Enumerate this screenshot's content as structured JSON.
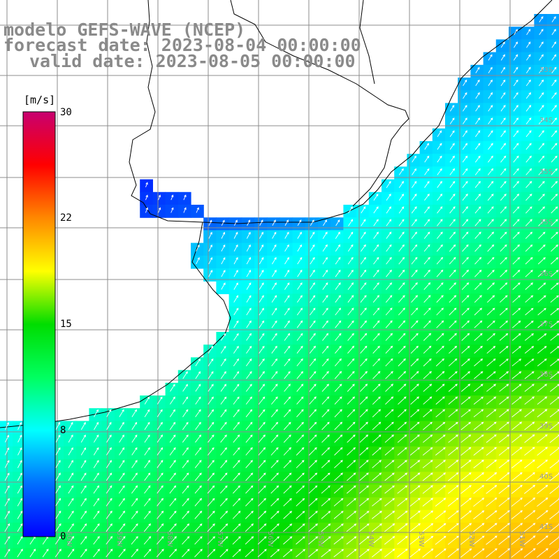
{
  "map": {
    "title": "modelo GEFS-WAVE (NCEP)",
    "forecast_date": "forecast date: 2023-08-04 00:00:00",
    "valid_date": "valid date: 2023-08-05 00:00:00",
    "land_color": "#ffffff",
    "grid_color": "#8c8c8c",
    "coast_color": "#000000",
    "arrow_color": "#ffffff"
  },
  "colorbar": {
    "unit": "[m/s]",
    "ticks": [
      "30",
      "22",
      "15",
      "8",
      "0"
    ],
    "min": 0,
    "max": 30,
    "stops": [
      "#0000ff",
      "#0070ff",
      "#00ffff",
      "#00ff60",
      "#00dd00",
      "#ffff00",
      "#ff8800",
      "#ff0000",
      "#c80070"
    ]
  },
  "grid_labels": {
    "latitudes": [
      "33S",
      "34S",
      "35S",
      "35S",
      "36S",
      "37S",
      "38S",
      "39S",
      "40S",
      "41S"
    ],
    "longitudes": [
      "60W",
      "59W",
      "58W",
      "57W",
      "56W",
      "55W",
      "54W",
      "53W",
      "52W",
      "51W"
    ]
  }
}
